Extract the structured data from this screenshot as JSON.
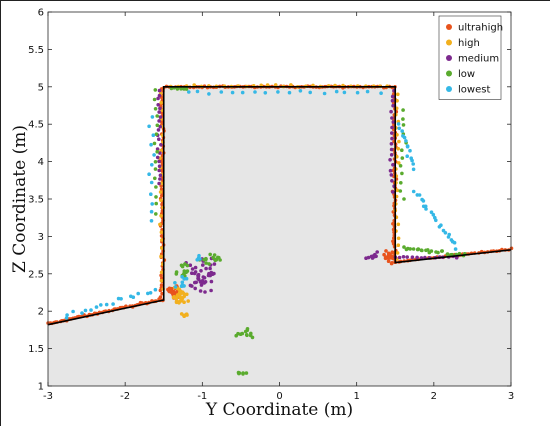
{
  "chart_data": {
    "type": "scatter",
    "title": "",
    "xlabel": "Y Coordinate (m)",
    "ylabel": "Z Coordinate (m)",
    "xlim": [
      -3,
      3
    ],
    "ylim": [
      1,
      6
    ],
    "x_ticks": [
      "-3",
      "-2",
      "-1",
      "0",
      "1",
      "2",
      "3"
    ],
    "y_ticks": [
      "1",
      "1.5",
      "2",
      "2.5",
      "3",
      "3.5",
      "4",
      "4.5",
      "5",
      "5.5",
      "6"
    ],
    "grid": false,
    "legend_position": "top-right",
    "ground_region_color": "#e6e6e6",
    "reference_outline": {
      "color": "#000000",
      "points": [
        [
          -3,
          1.82
        ],
        [
          -1.5,
          2.15
        ],
        [
          -1.5,
          5.0
        ],
        [
          1.5,
          5.0
        ],
        [
          1.5,
          2.65
        ],
        [
          3,
          2.82
        ]
      ]
    },
    "series": [
      {
        "name": "ultrahigh",
        "color": "#e8531c",
        "segments": [
          {
            "x0": -3.0,
            "y0": 1.83,
            "x1": -1.52,
            "y1": 2.16,
            "n": 60,
            "jx": 0.03,
            "jy": 0.02
          },
          {
            "x0": -1.52,
            "y0": 2.15,
            "x1": -1.52,
            "y1": 4.98,
            "n": 70,
            "jx": 0.03,
            "jy": 0.01
          },
          {
            "x0": -1.5,
            "y0": 5.0,
            "x1": 1.5,
            "y1": 5.0,
            "n": 80,
            "jx": 0.01,
            "jy": 0.015
          },
          {
            "x0": 1.49,
            "y0": 4.98,
            "x1": 1.49,
            "y1": 2.66,
            "n": 60,
            "jx": 0.03,
            "jy": 0.01
          },
          {
            "x0": 1.5,
            "y0": 2.66,
            "x1": 3.0,
            "y1": 2.83,
            "n": 40,
            "jx": 0.02,
            "jy": 0.015
          }
        ],
        "clusters": [
          {
            "cx": -1.35,
            "cy": 2.25,
            "rx": 0.12,
            "ry": 0.12,
            "n": 35
          },
          {
            "cx": 1.42,
            "cy": 2.72,
            "rx": 0.08,
            "ry": 0.1,
            "n": 20
          }
        ]
      },
      {
        "name": "high",
        "color": "#f2b01e",
        "segments": [
          {
            "x0": -1.53,
            "y0": 2.3,
            "x1": -1.53,
            "y1": 4.9,
            "n": 25,
            "jx": 0.04,
            "jy": 0.02
          },
          {
            "x0": 1.52,
            "y0": 2.7,
            "x1": 1.52,
            "y1": 4.9,
            "n": 25,
            "jx": 0.04,
            "jy": 0.02
          },
          {
            "x0": -1.4,
            "y0": 5.01,
            "x1": 1.4,
            "y1": 5.01,
            "n": 30,
            "jx": 0.02,
            "jy": 0.02
          }
        ],
        "clusters": [
          {
            "cx": -1.3,
            "cy": 2.2,
            "rx": 0.14,
            "ry": 0.16,
            "n": 30
          },
          {
            "cx": -1.2,
            "cy": 1.95,
            "rx": 0.12,
            "ry": 0.05,
            "n": 6
          }
        ]
      },
      {
        "name": "medium",
        "color": "#7d2a8e",
        "segments": [
          {
            "x0": -1.56,
            "y0": 3.7,
            "x1": -1.56,
            "y1": 4.95,
            "n": 22,
            "jx": 0.04,
            "jy": 0.02
          },
          {
            "x0": 1.46,
            "y0": 3.6,
            "x1": 1.46,
            "y1": 4.95,
            "n": 20,
            "jx": 0.04,
            "jy": 0.02
          },
          {
            "x0": 1.5,
            "y0": 2.72,
            "x1": 2.3,
            "y1": 2.72,
            "n": 15,
            "jx": 0.03,
            "jy": 0.02
          }
        ],
        "clusters": [
          {
            "cx": -1.0,
            "cy": 2.45,
            "rx": 0.25,
            "ry": 0.35,
            "n": 45
          },
          {
            "cx": 1.2,
            "cy": 2.75,
            "rx": 0.1,
            "ry": 0.1,
            "n": 10
          }
        ]
      },
      {
        "name": "low",
        "color": "#5aab2e",
        "segments": [
          {
            "x0": -1.6,
            "y0": 3.3,
            "x1": -1.6,
            "y1": 4.95,
            "n": 15,
            "jx": 0.05,
            "jy": 0.03
          },
          {
            "x0": -1.4,
            "y0": 4.97,
            "x1": -1.2,
            "y1": 4.97,
            "n": 6,
            "jx": 0.04,
            "jy": 0.02
          },
          {
            "x0": 1.6,
            "y0": 3.5,
            "x1": 1.6,
            "y1": 4.7,
            "n": 12,
            "jx": 0.05,
            "jy": 0.03
          },
          {
            "x0": 1.6,
            "y0": 2.85,
            "x1": 2.4,
            "y1": 2.75,
            "n": 25,
            "jx": 0.05,
            "jy": 0.04
          }
        ],
        "clusters": [
          {
            "cx": -0.9,
            "cy": 2.7,
            "rx": 0.2,
            "ry": 0.08,
            "n": 15
          },
          {
            "cx": -0.45,
            "cy": 1.7,
            "rx": 0.15,
            "ry": 0.1,
            "n": 12
          },
          {
            "cx": -0.5,
            "cy": 1.18,
            "rx": 0.12,
            "ry": 0.03,
            "n": 6
          },
          {
            "cx": -1.25,
            "cy": 2.55,
            "rx": 0.12,
            "ry": 0.15,
            "n": 12
          }
        ]
      },
      {
        "name": "lowest",
        "color": "#35b8e6",
        "segments": [
          {
            "x0": -2.8,
            "y0": 1.92,
            "x1": -1.6,
            "y1": 2.3,
            "n": 18,
            "jx": 0.05,
            "jy": 0.05
          },
          {
            "x0": -1.65,
            "y0": 3.2,
            "x1": -1.65,
            "y1": 4.6,
            "n": 12,
            "jx": 0.06,
            "jy": 0.03
          },
          {
            "x0": -1.2,
            "y0": 4.93,
            "x1": 1.3,
            "y1": 4.93,
            "n": 18,
            "jx": 0.05,
            "jy": 0.03
          },
          {
            "x0": 1.55,
            "y0": 4.5,
            "x1": 1.75,
            "y1": 3.9,
            "n": 14,
            "jx": 0.04,
            "jy": 0.05
          },
          {
            "x0": 1.75,
            "y0": 3.6,
            "x1": 2.3,
            "y1": 2.85,
            "n": 22,
            "jx": 0.05,
            "jy": 0.05
          }
        ],
        "clusters": [
          {
            "cx": -1.25,
            "cy": 2.35,
            "rx": 0.15,
            "ry": 0.2,
            "n": 10
          },
          {
            "cx": -1.05,
            "cy": 2.72,
            "rx": 0.1,
            "ry": 0.05,
            "n": 4
          }
        ]
      }
    ]
  }
}
